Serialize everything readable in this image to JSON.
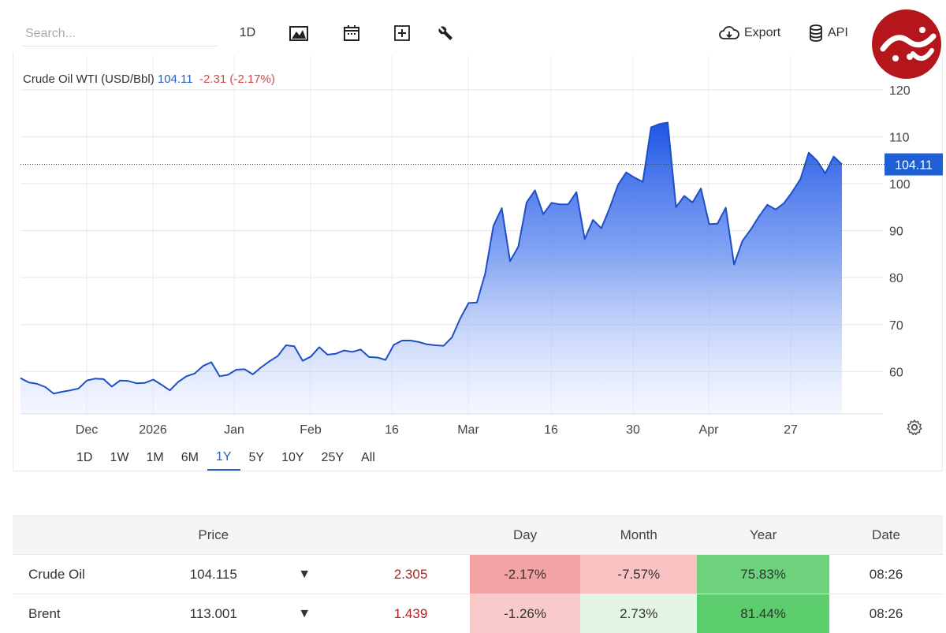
{
  "toolbar": {
    "search_placeholder": "Search...",
    "interval_label": "1D",
    "export_label": "Export",
    "api_label": "API"
  },
  "logo": {
    "text": "فرارو"
  },
  "legend": {
    "name": "Crude Oil WTI (USD/Bbl)",
    "last": "104.11",
    "change": "-2.31 (-2.17%)"
  },
  "ranges": [
    "1D",
    "1W",
    "1M",
    "6M",
    "1Y",
    "5Y",
    "10Y",
    "25Y",
    "All"
  ],
  "active_range": "1Y",
  "colors": {
    "accent": "#2a5fc4",
    "line": "#1f4fc6",
    "negative": "#d24a4a"
  },
  "chart_data": {
    "type": "area",
    "title": "Crude Oil WTI (USD/Bbl)",
    "ylim": [
      51,
      124
    ],
    "y_ticks": [
      60,
      70,
      80,
      90,
      100,
      110,
      120
    ],
    "x_ticks": [
      "Dec",
      "2026",
      "Jan",
      "Feb",
      "16",
      "Mar",
      "16",
      "30",
      "Apr",
      "27"
    ],
    "last_value": 104.11,
    "last_value_label": "104.11",
    "grid": true,
    "series": [
      {
        "values": [
          58.6,
          57.7,
          57.4,
          56.7,
          55.3,
          55.7,
          56.0,
          56.4,
          58.1,
          58.5,
          58.4,
          56.8,
          58.1,
          58.0,
          57.5,
          57.6,
          58.3,
          57.2,
          56.0,
          57.8,
          59.0,
          59.6,
          61.2,
          62.0,
          59.0,
          59.3,
          60.4,
          60.5,
          59.4,
          60.9,
          62.2,
          63.3,
          65.6,
          65.4,
          62.3,
          63.2,
          65.2,
          63.6,
          63.8,
          64.5,
          64.2,
          64.7,
          63.1,
          63.0,
          62.5,
          65.7,
          66.6,
          66.6,
          66.3,
          65.8,
          65.6,
          65.5,
          67.3,
          71.3,
          74.6,
          74.7,
          80.8,
          91.0,
          94.8,
          83.5,
          86.6,
          96.0,
          98.6,
          93.5,
          95.9,
          95.6,
          95.6,
          98.2,
          88.2,
          92.3,
          90.5,
          94.8,
          99.7,
          102.4,
          101.3,
          100.4,
          112.0,
          112.7,
          113.0,
          95.0,
          97.4,
          96.0,
          99.0,
          91.4,
          91.5,
          94.9,
          82.8,
          87.8,
          90.2,
          93.0,
          95.5,
          94.5,
          95.8,
          98.2,
          101.0,
          106.6,
          104.9,
          102.2,
          105.8,
          104.11
        ]
      }
    ]
  },
  "table": {
    "headers": [
      "",
      "Price",
      "",
      "",
      "Day",
      "Month",
      "Year",
      "Date"
    ],
    "rows": [
      {
        "name": "Crude Oil",
        "price": "104.115",
        "arrow": "▼",
        "change": "2.305",
        "day": "-2.17%",
        "month": "-7.57%",
        "year": "75.83%",
        "date": "08:26",
        "day_bg": "#f3a3a3",
        "month_bg": "#f9c3c3",
        "year_bg": "#6ed27c"
      },
      {
        "name": "Brent",
        "price": "113.001",
        "arrow": "▼",
        "change": "1.439",
        "day": "-1.26%",
        "month": "2.73%",
        "year": "81.44%",
        "date": "08:26",
        "day_bg": "#f9caca",
        "month_bg": "#e3f6e6",
        "year_bg": "#5ccd6c"
      }
    ]
  }
}
